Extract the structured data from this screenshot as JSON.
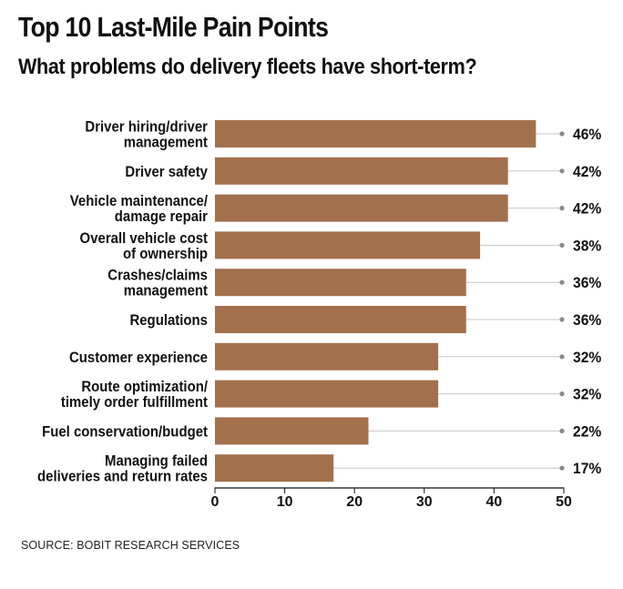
{
  "header": {
    "title": "Top 10 Last-Mile Pain Points",
    "subtitle": "What problems do delivery fleets have short-term?"
  },
  "footer": {
    "source": "SOURCE: BOBIT RESEARCH SERVICES"
  },
  "colors": {
    "bar": "#A3704E",
    "leader": "#c8c8c8",
    "dot": "#8a8a8a",
    "text": "#111111"
  },
  "chart_data": {
    "type": "bar",
    "orientation": "horizontal",
    "title": "Top 10 Last-Mile Pain Points",
    "subtitle": "What problems do delivery fleets have short-term?",
    "xlabel": "",
    "ylabel": "",
    "xlim": [
      0,
      50
    ],
    "xticks": [
      0,
      10,
      20,
      30,
      40,
      50
    ],
    "grid": false,
    "legend": "none",
    "categories": [
      [
        "Driver hiring/driver",
        "management"
      ],
      [
        "Driver safety"
      ],
      [
        "Vehicle maintenance/",
        "damage repair"
      ],
      [
        "Overall vehicle cost",
        "of ownership"
      ],
      [
        "Crashes/claims",
        "management"
      ],
      [
        "Regulations"
      ],
      [
        "Customer experience"
      ],
      [
        "Route optimization/",
        "timely order fulfillment"
      ],
      [
        "Fuel conservation/budget"
      ],
      [
        "Managing failed",
        "deliveries and return rates"
      ]
    ],
    "values": [
      46,
      42,
      42,
      38,
      36,
      36,
      32,
      32,
      22,
      17
    ],
    "value_labels": [
      "46%",
      "42%",
      "42%",
      "38%",
      "36%",
      "36%",
      "32%",
      "32%",
      "22%",
      "17%"
    ]
  }
}
